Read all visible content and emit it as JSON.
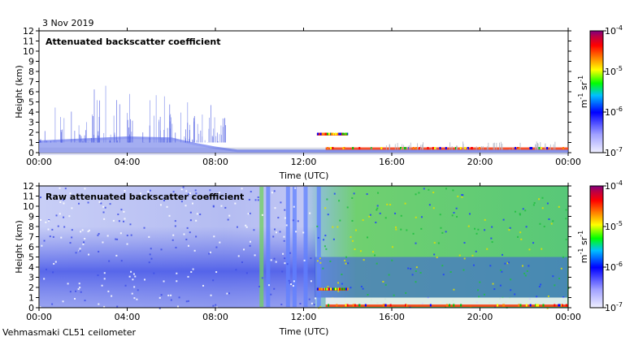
{
  "header": {
    "date": "3 Nov 2019"
  },
  "footer": {
    "instrument": "Vehmasmaki CL51 ceilometer"
  },
  "chart_data": [
    {
      "type": "heatmap",
      "title": "Attenuated backscatter coefficient",
      "xlabel": "Time (UTC)",
      "ylabel": "Height (km)",
      "x_ticks": [
        "00:00",
        "04:00",
        "08:00",
        "12:00",
        "16:00",
        "20:00",
        "00:00"
      ],
      "x_hours": [
        0,
        4,
        8,
        12,
        16,
        20,
        24
      ],
      "xlim": [
        0,
        24
      ],
      "y_ticks": [
        0,
        1,
        2,
        3,
        4,
        5,
        6,
        7,
        8,
        9,
        10,
        11,
        12
      ],
      "ylim": [
        0,
        12
      ],
      "colorbar": {
        "label_base": "m",
        "label_exp1": "-1",
        "label_mid": " sr",
        "label_exp2": "-1",
        "ticks": [
          {
            "base": "10",
            "exp": "-4",
            "value": 0.0001
          },
          {
            "base": "10",
            "exp": "-5",
            "value": 1e-05
          },
          {
            "base": "10",
            "exp": "-6",
            "value": 1e-06
          },
          {
            "base": "10",
            "exp": "-7",
            "value": 1e-07
          }
        ],
        "scale": "log",
        "range": [
          1e-07,
          0.0001
        ]
      },
      "boundary_layer_top_km": [
        [
          0,
          1.2
        ],
        [
          2,
          1.4
        ],
        [
          4,
          1.6
        ],
        [
          6,
          1.5
        ],
        [
          7,
          1.0
        ],
        [
          8,
          0.6
        ],
        [
          9,
          0.3
        ],
        [
          12,
          0.3
        ],
        [
          24,
          0.3
        ]
      ],
      "cloud_base_segments": [
        {
          "start_h": 12.6,
          "end_h": 14,
          "height_km": 1.8
        },
        {
          "start_h": 13,
          "end_h": 24,
          "height_km": 0.4
        }
      ]
    },
    {
      "type": "heatmap",
      "title": "Raw attenuated backscatter coefficient",
      "xlabel": "Time (UTC)",
      "ylabel": "Height (km)",
      "x_ticks": [
        "00:00",
        "04:00",
        "08:00",
        "12:00",
        "16:00",
        "20:00",
        "00:00"
      ],
      "x_hours": [
        0,
        4,
        8,
        12,
        16,
        20,
        24
      ],
      "xlim": [
        0,
        24
      ],
      "y_ticks": [
        0,
        1,
        2,
        3,
        4,
        5,
        6,
        7,
        8,
        9,
        10,
        11,
        12
      ],
      "ylim": [
        0,
        12
      ],
      "colorbar": {
        "label_base": "m",
        "label_exp1": "-1",
        "label_mid": " sr",
        "label_exp2": "-1",
        "ticks": [
          {
            "base": "10",
            "exp": "-4",
            "value": 0.0001
          },
          {
            "base": "10",
            "exp": "-5",
            "value": 1e-05
          },
          {
            "base": "10",
            "exp": "-6",
            "value": 1e-06
          },
          {
            "base": "10",
            "exp": "-7",
            "value": 1e-07
          }
        ],
        "scale": "log",
        "range": [
          1e-07,
          0.0001
        ]
      },
      "noise_transition_hour": 12.5,
      "cloud_base_segments": [
        {
          "start_h": 12.6,
          "end_h": 14,
          "height_km": 1.8
        },
        {
          "start_h": 13,
          "end_h": 24,
          "height_km": 0.2
        }
      ]
    }
  ]
}
